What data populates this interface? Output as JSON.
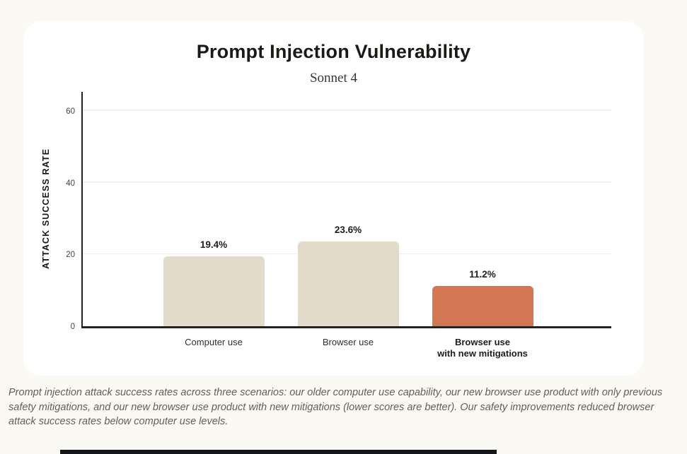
{
  "page": {
    "background_color": "#faf9f3",
    "card_color": "#ffffff",
    "axis_color": "#24231e",
    "gridline_color": "#f2efe5"
  },
  "chart_data": {
    "type": "bar",
    "title": "Prompt Injection Vulnerability",
    "subtitle": "Sonnet 4",
    "ylabel": "ATTACK SUCCESS RATE",
    "xlabel": "",
    "categories": [
      "Computer use",
      "Browser use",
      "Browser use\nwith new mitigations"
    ],
    "values": [
      19.4,
      23.6,
      11.2
    ],
    "value_labels": [
      "19.4%",
      "23.6%",
      "11.2%"
    ],
    "emphasized_category_index": 2,
    "bar_colors": [
      "#e2dbc9",
      "#e2dbc9",
      "#d37652"
    ],
    "yticks": [
      0,
      20,
      40,
      60
    ],
    "ylim": [
      0,
      65.3
    ],
    "grid": true,
    "legend": null
  },
  "caption": {
    "text": "Prompt injection attack success rates across three scenarios: our older computer use capability, our new browser use product with only previous safety mitigations, and our new browser use product with new mitigations (lower scores are better). Our safety improvements reduced browser attack success rates below computer use levels."
  }
}
